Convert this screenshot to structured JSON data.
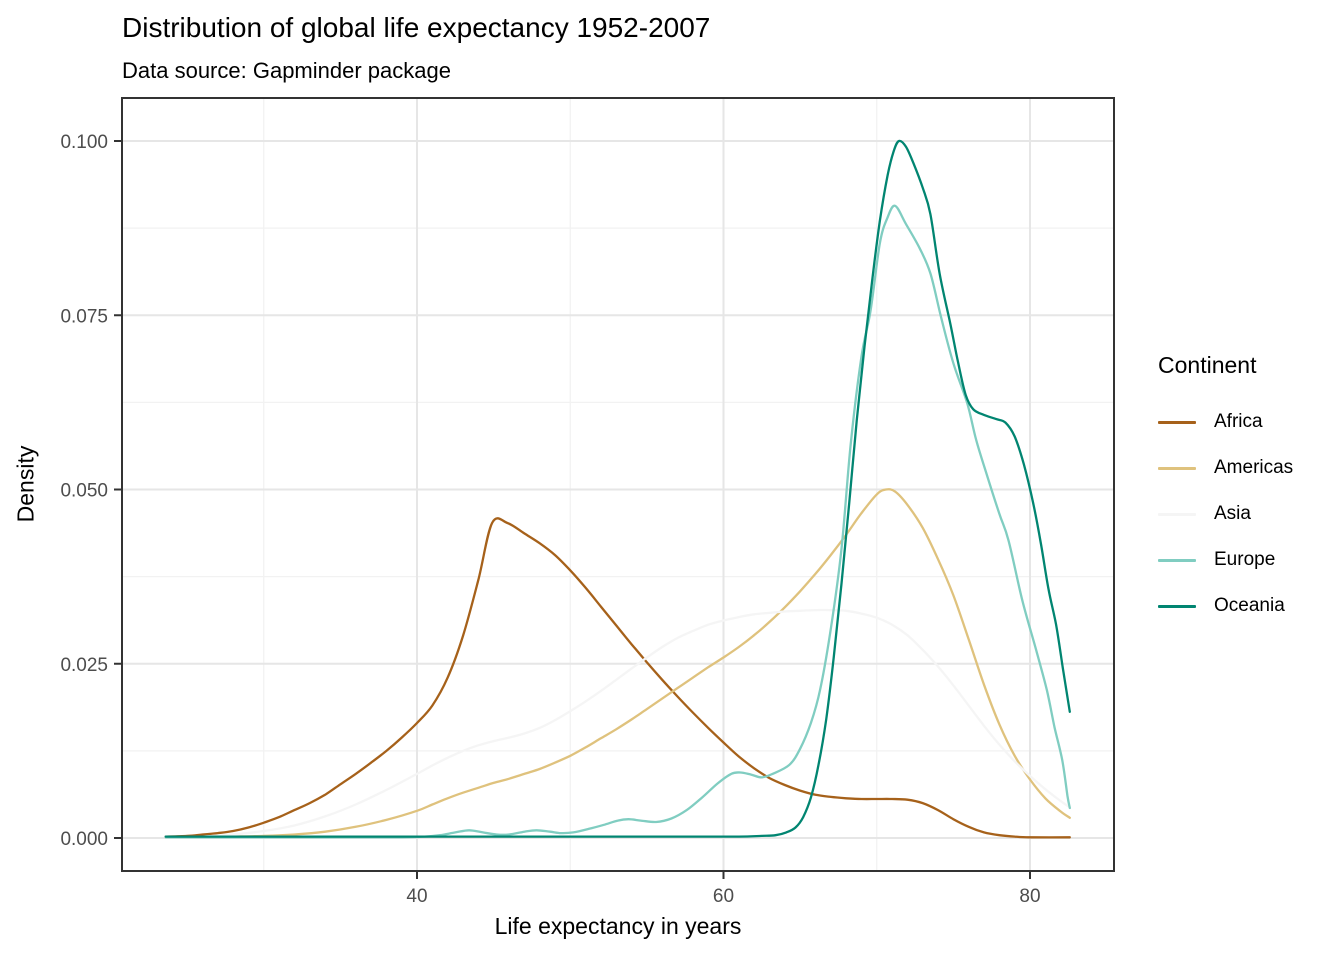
{
  "chart_data": {
    "type": "line",
    "title": "Distribution of global life expectancy 1952-2007",
    "subtitle": "Data source: Gapminder package",
    "xlabel": "Life expectancy in years",
    "ylabel": "Density",
    "legend_title": "Continent",
    "legend_position": "right",
    "grid": true,
    "xlim": [
      20.8,
      85.5
    ],
    "ylim": [
      0,
      0.1062
    ],
    "x_ticks": [
      {
        "value": 40,
        "label": "40"
      },
      {
        "value": 60,
        "label": "60"
      },
      {
        "value": 80,
        "label": "80"
      }
    ],
    "x_minor_ticks": [
      30,
      50,
      70
    ],
    "y_ticks": [
      {
        "value": 0,
        "label": "0.000"
      },
      {
        "value": 0.025,
        "label": "0.025"
      },
      {
        "value": 0.05,
        "label": "0.050"
      },
      {
        "value": 0.075,
        "label": "0.075"
      },
      {
        "value": 0.1,
        "label": "0.100"
      }
    ],
    "y_minor_ticks": [
      0.0125,
      0.0375,
      0.0625,
      0.0875
    ],
    "series": [
      {
        "name": "Africa",
        "color": "#A6611A",
        "points": [
          [
            23.6,
            0.0002
          ],
          [
            25,
            0.0003
          ],
          [
            26,
            0.0005
          ],
          [
            27,
            0.0007
          ],
          [
            28,
            0.001
          ],
          [
            29,
            0.0015
          ],
          [
            30,
            0.0022
          ],
          [
            31,
            0.003
          ],
          [
            32,
            0.004
          ],
          [
            33,
            0.005
          ],
          [
            34,
            0.0062
          ],
          [
            35,
            0.0077
          ],
          [
            36,
            0.0092
          ],
          [
            37,
            0.0108
          ],
          [
            38,
            0.0125
          ],
          [
            39,
            0.0144
          ],
          [
            40,
            0.0165
          ],
          [
            41,
            0.019
          ],
          [
            42,
            0.023
          ],
          [
            43,
            0.029
          ],
          [
            44,
            0.037
          ],
          [
            44.9,
            0.0452
          ],
          [
            45.9,
            0.0452
          ],
          [
            47,
            0.0437
          ],
          [
            48,
            0.0423
          ],
          [
            49,
            0.0406
          ],
          [
            50,
            0.0384
          ],
          [
            51,
            0.0359
          ],
          [
            52,
            0.0332
          ],
          [
            53,
            0.0305
          ],
          [
            54,
            0.0278
          ],
          [
            55,
            0.0252
          ],
          [
            56,
            0.0227
          ],
          [
            57,
            0.0203
          ],
          [
            58,
            0.018
          ],
          [
            59,
            0.0158
          ],
          [
            60,
            0.0137
          ],
          [
            61,
            0.0117
          ],
          [
            62,
            0.01
          ],
          [
            63,
            0.0086
          ],
          [
            64,
            0.0076
          ],
          [
            65,
            0.0068
          ],
          [
            66,
            0.0062
          ],
          [
            67,
            0.0059
          ],
          [
            68,
            0.0057
          ],
          [
            69,
            0.0056
          ],
          [
            70,
            0.0056
          ],
          [
            71,
            0.0056
          ],
          [
            72,
            0.0055
          ],
          [
            73,
            0.005
          ],
          [
            74,
            0.004
          ],
          [
            75,
            0.0027
          ],
          [
            76,
            0.0016
          ],
          [
            77,
            0.0008
          ],
          [
            78,
            0.0004
          ],
          [
            79,
            0.0002
          ],
          [
            80,
            0.0001
          ],
          [
            82.6,
            0.0001
          ]
        ]
      },
      {
        "name": "Americas",
        "color": "#DFC27D",
        "points": [
          [
            23.6,
            0.0001
          ],
          [
            26,
            0.0001
          ],
          [
            28,
            0.0002
          ],
          [
            30,
            0.0003
          ],
          [
            32,
            0.0005
          ],
          [
            34,
            0.0009
          ],
          [
            36,
            0.0016
          ],
          [
            38,
            0.0026
          ],
          [
            40,
            0.0039
          ],
          [
            41,
            0.0048
          ],
          [
            42,
            0.0057
          ],
          [
            43,
            0.0065
          ],
          [
            44,
            0.0072
          ],
          [
            45,
            0.0079
          ],
          [
            46,
            0.0085
          ],
          [
            47,
            0.0092
          ],
          [
            48,
            0.0099
          ],
          [
            49,
            0.0108
          ],
          [
            50,
            0.0118
          ],
          [
            51,
            0.013
          ],
          [
            52,
            0.0143
          ],
          [
            53,
            0.0156
          ],
          [
            54,
            0.017
          ],
          [
            55,
            0.0185
          ],
          [
            56,
            0.02
          ],
          [
            57,
            0.0215
          ],
          [
            58,
            0.023
          ],
          [
            59,
            0.0245
          ],
          [
            60,
            0.0259
          ],
          [
            61,
            0.0274
          ],
          [
            62,
            0.0291
          ],
          [
            63,
            0.031
          ],
          [
            64,
            0.0331
          ],
          [
            65,
            0.0354
          ],
          [
            66,
            0.0379
          ],
          [
            67,
            0.0406
          ],
          [
            68,
            0.0435
          ],
          [
            69,
            0.0466
          ],
          [
            70,
            0.0493
          ],
          [
            70.6,
            0.05
          ],
          [
            71.2,
            0.0497
          ],
          [
            72,
            0.0478
          ],
          [
            73,
            0.0445
          ],
          [
            74,
            0.04
          ],
          [
            75,
            0.0348
          ],
          [
            76,
            0.0285
          ],
          [
            77,
            0.022
          ],
          [
            78,
            0.0163
          ],
          [
            79,
            0.0118
          ],
          [
            80,
            0.0084
          ],
          [
            81,
            0.0057
          ],
          [
            82,
            0.0038
          ],
          [
            82.6,
            0.0029
          ]
        ]
      },
      {
        "name": "Asia",
        "color": "#F5F5F5",
        "points": [
          [
            23.6,
            0.0001
          ],
          [
            26,
            0.0002
          ],
          [
            28,
            0.0005
          ],
          [
            30,
            0.001
          ],
          [
            32,
            0.0018
          ],
          [
            34,
            0.0031
          ],
          [
            36,
            0.0048
          ],
          [
            38,
            0.0069
          ],
          [
            40,
            0.0092
          ],
          [
            41,
            0.0104
          ],
          [
            42,
            0.0115
          ],
          [
            43,
            0.0125
          ],
          [
            44,
            0.0133
          ],
          [
            45,
            0.0139
          ],
          [
            46,
            0.0144
          ],
          [
            47,
            0.015
          ],
          [
            48,
            0.0158
          ],
          [
            49,
            0.0169
          ],
          [
            50,
            0.0182
          ],
          [
            51,
            0.0196
          ],
          [
            52,
            0.0211
          ],
          [
            53,
            0.0227
          ],
          [
            54,
            0.0243
          ],
          [
            55,
            0.0259
          ],
          [
            56,
            0.0274
          ],
          [
            57,
            0.0287
          ],
          [
            58,
            0.0297
          ],
          [
            59,
            0.0306
          ],
          [
            60,
            0.0312
          ],
          [
            61,
            0.0317
          ],
          [
            62,
            0.0321
          ],
          [
            63,
            0.0323
          ],
          [
            64,
            0.0325
          ],
          [
            65,
            0.0326
          ],
          [
            66,
            0.0327
          ],
          [
            67,
            0.0327
          ],
          [
            68,
            0.0326
          ],
          [
            69,
            0.0322
          ],
          [
            70,
            0.0316
          ],
          [
            71,
            0.0306
          ],
          [
            72,
            0.0291
          ],
          [
            73,
            0.027
          ],
          [
            74,
            0.0246
          ],
          [
            75,
            0.0219
          ],
          [
            76,
            0.019
          ],
          [
            77,
            0.0161
          ],
          [
            78,
            0.0134
          ],
          [
            79,
            0.011
          ],
          [
            80,
            0.0089
          ],
          [
            81,
            0.007
          ],
          [
            82,
            0.0053
          ],
          [
            82.6,
            0.0044
          ]
        ]
      },
      {
        "name": "Europe",
        "color": "#80CDC1",
        "points": [
          [
            23.6,
            0.0001
          ],
          [
            30,
            0.0001
          ],
          [
            36,
            0.0001
          ],
          [
            39,
            0.0001
          ],
          [
            40.5,
            0.0002
          ],
          [
            41.5,
            0.0004
          ],
          [
            42.5,
            0.0008
          ],
          [
            43.4,
            0.0011
          ],
          [
            44.3,
            0.0008
          ],
          [
            45.2,
            0.0005
          ],
          [
            46,
            0.0005
          ],
          [
            47,
            0.0009
          ],
          [
            47.8,
            0.0011
          ],
          [
            48.7,
            0.0009
          ],
          [
            49.4,
            0.0007
          ],
          [
            50.2,
            0.0008
          ],
          [
            51.2,
            0.0013
          ],
          [
            52.2,
            0.0019
          ],
          [
            53.1,
            0.0025
          ],
          [
            53.8,
            0.0027
          ],
          [
            54.6,
            0.0025
          ],
          [
            55.6,
            0.0023
          ],
          [
            56.6,
            0.0028
          ],
          [
            57.6,
            0.004
          ],
          [
            58.6,
            0.0058
          ],
          [
            59.6,
            0.0078
          ],
          [
            60.5,
            0.0092
          ],
          [
            61.1,
            0.0094
          ],
          [
            61.8,
            0.0091
          ],
          [
            62.5,
            0.0087
          ],
          [
            63.2,
            0.0092
          ],
          [
            64.3,
            0.0105
          ],
          [
            65,
            0.0128
          ],
          [
            65.7,
            0.0165
          ],
          [
            66.3,
            0.0212
          ],
          [
            67,
            0.03
          ],
          [
            67.7,
            0.0415
          ],
          [
            68.3,
            0.0565
          ],
          [
            69,
            0.069
          ],
          [
            69.6,
            0.0757
          ],
          [
            70.2,
            0.0853
          ],
          [
            70.7,
            0.089
          ],
          [
            71.2,
            0.0907
          ],
          [
            71.9,
            0.0881
          ],
          [
            72.8,
            0.0846
          ],
          [
            73.5,
            0.081
          ],
          [
            74.2,
            0.0747
          ],
          [
            75,
            0.0681
          ],
          [
            75.9,
            0.0624
          ],
          [
            76.5,
            0.057
          ],
          [
            77.2,
            0.052
          ],
          [
            78,
            0.0465
          ],
          [
            78.6,
            0.0427
          ],
          [
            79.5,
            0.0341
          ],
          [
            80.4,
            0.027
          ],
          [
            81.1,
            0.0212
          ],
          [
            81.6,
            0.0159
          ],
          [
            82.1,
            0.0112
          ],
          [
            82.45,
            0.006
          ],
          [
            82.6,
            0.0043
          ]
        ]
      },
      {
        "name": "Oceania",
        "color": "#018571",
        "points": [
          [
            23.6,
            0.0002
          ],
          [
            30,
            0.0002
          ],
          [
            40,
            0.0002
          ],
          [
            50,
            0.0002
          ],
          [
            58,
            0.0002
          ],
          [
            61,
            0.0002
          ],
          [
            62.5,
            0.0003
          ],
          [
            63.4,
            0.0004
          ],
          [
            64.1,
            0.0008
          ],
          [
            64.7,
            0.0015
          ],
          [
            65.2,
            0.003
          ],
          [
            65.7,
            0.0058
          ],
          [
            66.2,
            0.0105
          ],
          [
            66.7,
            0.017
          ],
          [
            67.2,
            0.026
          ],
          [
            67.7,
            0.0365
          ],
          [
            68.2,
            0.048
          ],
          [
            68.7,
            0.06
          ],
          [
            69.2,
            0.0705
          ],
          [
            69.7,
            0.08
          ],
          [
            70.2,
            0.0885
          ],
          [
            70.7,
            0.095
          ],
          [
            71.1,
            0.0985
          ],
          [
            71.45,
            0.1
          ],
          [
            71.9,
            0.0992
          ],
          [
            72.4,
            0.0968
          ],
          [
            73,
            0.0933
          ],
          [
            73.5,
            0.0895
          ],
          [
            74.1,
            0.081
          ],
          [
            74.8,
            0.0738
          ],
          [
            75.3,
            0.0683
          ],
          [
            75.8,
            0.0636
          ],
          [
            76.3,
            0.0615
          ],
          [
            77,
            0.0607
          ],
          [
            77.8,
            0.0601
          ],
          [
            78.4,
            0.0596
          ],
          [
            79,
            0.0576
          ],
          [
            79.6,
            0.0536
          ],
          [
            80.2,
            0.0481
          ],
          [
            80.7,
            0.0424
          ],
          [
            81.2,
            0.0358
          ],
          [
            81.7,
            0.0306
          ],
          [
            82.15,
            0.0243
          ],
          [
            82.6,
            0.0181
          ]
        ]
      }
    ],
    "colors": {
      "background": "#ffffff",
      "grid_major": "#e6e6e6",
      "grid_minor": "#f2f2f2",
      "panel_border": "#333333",
      "tick_mark": "#333333",
      "axis_text": "#4d4d4d"
    }
  }
}
